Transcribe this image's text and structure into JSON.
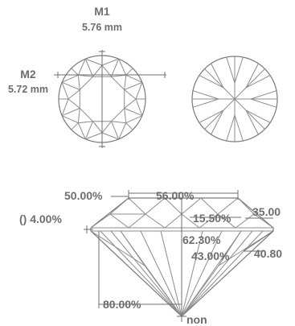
{
  "measurements": {
    "m1_label": "M1",
    "m1_value": "5.76 mm",
    "m2_label": "M2",
    "m2_value": "5.72 mm"
  },
  "profile": {
    "crown_percent": "50.00%",
    "table_percent": "56.00%",
    "girdle_label": "() 4.00%",
    "crown_height": "15.50%",
    "crown_angle": "35.00",
    "total_depth": "62.30%",
    "pavilion_depth": "43.00%",
    "pavilion_angle": "40.80",
    "lower_half": "80.00%",
    "culet": "non"
  },
  "colors": {
    "line": "#8c8c8c",
    "text": "#6e6e6e"
  }
}
